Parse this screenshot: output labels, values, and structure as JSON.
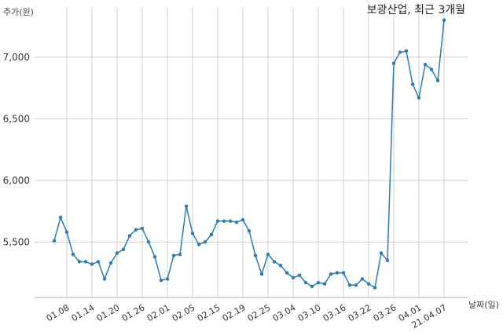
{
  "chart_data": {
    "type": "line",
    "title": "보광산업, 최근 3개월",
    "ylabel": "주가(원)",
    "xlabel": "날짜(일)",
    "ylim": [
      5050,
      7400
    ],
    "yticks": [
      5500,
      6000,
      6500,
      7000
    ],
    "ytick_labels": [
      "5,500",
      "6,000",
      "6,500",
      "7,000"
    ],
    "xtick_labels": [
      "01.08",
      "01.14",
      "01.20",
      "01.26",
      "02.01",
      "02.05",
      "02.15",
      "02.19",
      "02.25",
      "03.04",
      "03.10",
      "03.16",
      "03.22",
      "03.26",
      "04.01",
      "21.04.07"
    ],
    "xtick_index": [
      2,
      6,
      10,
      14,
      18,
      22,
      26,
      30,
      34,
      38,
      42,
      46,
      50,
      54,
      58,
      62
    ],
    "grid": true,
    "color": "#2b7bb9",
    "series": [
      {
        "values": [
          5510,
          5700,
          5580,
          5400,
          5340,
          5340,
          5320,
          5340,
          5200,
          5330,
          5410,
          5440,
          5550,
          5600,
          5610,
          5500,
          5380,
          5190,
          5200,
          5390,
          5400,
          5790,
          5570,
          5480,
          5500,
          5560,
          5670,
          5670,
          5670,
          5660,
          5680,
          5590,
          5390,
          5240,
          5400,
          5340,
          5310,
          5250,
          5210,
          5230,
          5170,
          5140,
          5170,
          5160,
          5240,
          5250,
          5250,
          5150,
          5150,
          5200,
          5160,
          5130,
          5410,
          5350,
          6950,
          7040,
          7050,
          6780,
          6670,
          6940,
          6900,
          6810,
          7300
        ]
      }
    ]
  }
}
